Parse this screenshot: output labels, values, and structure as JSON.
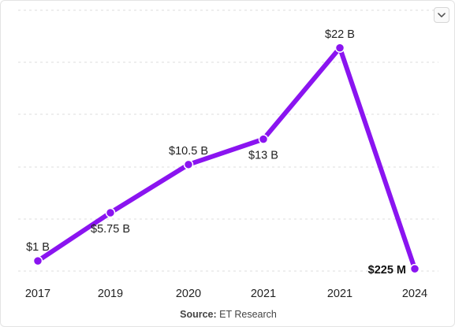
{
  "chart_data": {
    "type": "line",
    "categories": [
      "2017",
      "2019",
      "2020",
      "2021",
      "2021",
      "2024"
    ],
    "series": [
      {
        "values": [
          1,
          5.75,
          10.5,
          13,
          22,
          0.225
        ],
        "labels": [
          "$1 B",
          "$5.75 B",
          "$10.5 B",
          "$13 B",
          "$22 B",
          "$225 M"
        ],
        "color": "#8a14f0"
      }
    ],
    "ylim": [
      0,
      24
    ],
    "title": "",
    "xlabel": "",
    "ylabel": "",
    "grid": true,
    "label_placement": [
      "above",
      "below",
      "above",
      "below",
      "above",
      "left"
    ],
    "emphasized_label_index": 5,
    "legend": "none"
  },
  "source": {
    "label": "Source:",
    "text": "ET Research"
  },
  "controls": {
    "menu_icon": "chevron-down-icon"
  }
}
